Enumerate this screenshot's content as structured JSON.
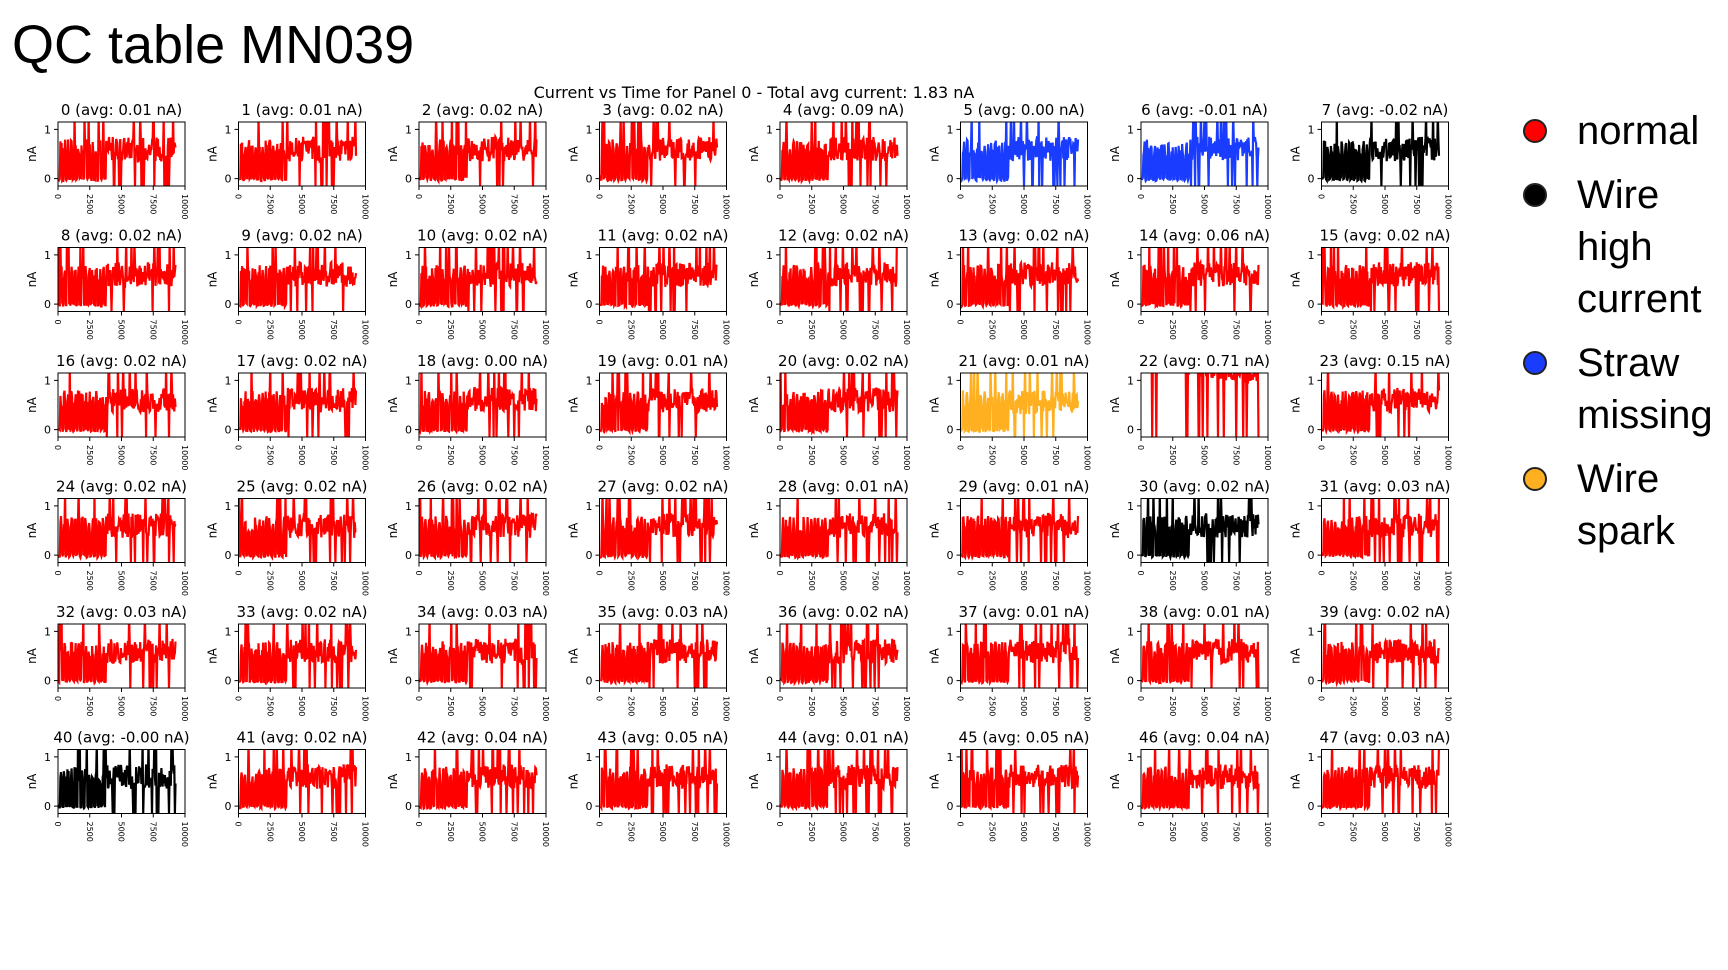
{
  "slide_title": "QC table MN039",
  "legend": {
    "items": [
      {
        "label": "normal",
        "color": "#ff0000"
      },
      {
        "label": "Wire high current",
        "color": "#000000"
      },
      {
        "label": "Straw missing",
        "color": "#1a3cff"
      },
      {
        "label": "Wire spark",
        "color": "#ffb020"
      }
    ]
  },
  "chart_data": {
    "type": "line",
    "title": "Current vs Time for Panel 0 - Total avg current: 1.83 nA",
    "grid": false,
    "xlim": [
      0,
      10000
    ],
    "ylim": [
      -0.15,
      1.15
    ],
    "x_ticks": [
      0,
      2500,
      5000,
      7500,
      10000
    ],
    "y_ticks": [
      0,
      1
    ],
    "ylabel": "nA",
    "colors": {
      "normal": "#ff0000",
      "high": "#000000",
      "missing": "#1a3cff",
      "spark": "#ffb020"
    },
    "panels": [
      {
        "channel": 0,
        "label": "0 (avg: 0.01 nA)",
        "status": "normal",
        "avg": 0.01
      },
      {
        "channel": 1,
        "label": "1 (avg: 0.01 nA)",
        "status": "normal",
        "avg": 0.01
      },
      {
        "channel": 2,
        "label": "2 (avg: 0.02 nA)",
        "status": "normal",
        "avg": 0.02
      },
      {
        "channel": 3,
        "label": "3 (avg: 0.02 nA)",
        "status": "normal",
        "avg": 0.02
      },
      {
        "channel": 4,
        "label": "4 (avg: 0.09 nA)",
        "status": "normal",
        "avg": 0.09
      },
      {
        "channel": 5,
        "label": "5 (avg: 0.00 nA)",
        "status": "missing",
        "avg": 0.0
      },
      {
        "channel": 6,
        "label": "6 (avg: -0.01 nA)",
        "status": "missing",
        "avg": -0.01
      },
      {
        "channel": 7,
        "label": "7 (avg: -0.02 nA)",
        "status": "high",
        "avg": -0.02
      },
      {
        "channel": 8,
        "label": "8 (avg: 0.02 nA)",
        "status": "normal",
        "avg": 0.02
      },
      {
        "channel": 9,
        "label": "9 (avg: 0.02 nA)",
        "status": "normal",
        "avg": 0.02
      },
      {
        "channel": 10,
        "label": "10 (avg: 0.02 nA)",
        "status": "normal",
        "avg": 0.02
      },
      {
        "channel": 11,
        "label": "11 (avg: 0.02 nA)",
        "status": "normal",
        "avg": 0.02
      },
      {
        "channel": 12,
        "label": "12 (avg: 0.02 nA)",
        "status": "normal",
        "avg": 0.02
      },
      {
        "channel": 13,
        "label": "13 (avg: 0.02 nA)",
        "status": "normal",
        "avg": 0.02
      },
      {
        "channel": 14,
        "label": "14 (avg: 0.06 nA)",
        "status": "normal",
        "avg": 0.06
      },
      {
        "channel": 15,
        "label": "15 (avg: 0.02 nA)",
        "status": "normal",
        "avg": 0.02
      },
      {
        "channel": 16,
        "label": "16 (avg: 0.02 nA)",
        "status": "normal",
        "avg": 0.02
      },
      {
        "channel": 17,
        "label": "17 (avg: 0.02 nA)",
        "status": "normal",
        "avg": 0.02
      },
      {
        "channel": 18,
        "label": "18 (avg: 0.00 nA)",
        "status": "normal",
        "avg": 0.0
      },
      {
        "channel": 19,
        "label": "19 (avg: 0.01 nA)",
        "status": "normal",
        "avg": 0.01
      },
      {
        "channel": 20,
        "label": "20 (avg: 0.02 nA)",
        "status": "normal",
        "avg": 0.02
      },
      {
        "channel": 21,
        "label": "21 (avg: 0.01 nA)",
        "status": "spark",
        "avg": 0.01
      },
      {
        "channel": 22,
        "label": "22 (avg: 0.71 nA)",
        "status": "normal",
        "avg": 0.71
      },
      {
        "channel": 23,
        "label": "23 (avg: 0.15 nA)",
        "status": "normal",
        "avg": 0.15
      },
      {
        "channel": 24,
        "label": "24 (avg: 0.02 nA)",
        "status": "normal",
        "avg": 0.02
      },
      {
        "channel": 25,
        "label": "25 (avg: 0.02 nA)",
        "status": "normal",
        "avg": 0.02
      },
      {
        "channel": 26,
        "label": "26 (avg: 0.02 nA)",
        "status": "normal",
        "avg": 0.02
      },
      {
        "channel": 27,
        "label": "27 (avg: 0.02 nA)",
        "status": "normal",
        "avg": 0.02
      },
      {
        "channel": 28,
        "label": "28 (avg: 0.01 nA)",
        "status": "normal",
        "avg": 0.01
      },
      {
        "channel": 29,
        "label": "29 (avg: 0.01 nA)",
        "status": "normal",
        "avg": 0.01
      },
      {
        "channel": 30,
        "label": "30 (avg: 0.02 nA)",
        "status": "high",
        "avg": 0.02
      },
      {
        "channel": 31,
        "label": "31 (avg: 0.03 nA)",
        "status": "normal",
        "avg": 0.03
      },
      {
        "channel": 32,
        "label": "32 (avg: 0.03 nA)",
        "status": "normal",
        "avg": 0.03
      },
      {
        "channel": 33,
        "label": "33 (avg: 0.02 nA)",
        "status": "normal",
        "avg": 0.02
      },
      {
        "channel": 34,
        "label": "34 (avg: 0.03 nA)",
        "status": "normal",
        "avg": 0.03
      },
      {
        "channel": 35,
        "label": "35 (avg: 0.03 nA)",
        "status": "normal",
        "avg": 0.03
      },
      {
        "channel": 36,
        "label": "36 (avg: 0.02 nA)",
        "status": "normal",
        "avg": 0.02
      },
      {
        "channel": 37,
        "label": "37 (avg: 0.01 nA)",
        "status": "normal",
        "avg": 0.01
      },
      {
        "channel": 38,
        "label": "38 (avg: 0.01 nA)",
        "status": "normal",
        "avg": 0.01
      },
      {
        "channel": 39,
        "label": "39 (avg: 0.02 nA)",
        "status": "normal",
        "avg": 0.02
      },
      {
        "channel": 40,
        "label": "40 (avg: -0.00 nA)",
        "status": "high",
        "avg": -0.0
      },
      {
        "channel": 41,
        "label": "41 (avg: 0.02 nA)",
        "status": "normal",
        "avg": 0.02
      },
      {
        "channel": 42,
        "label": "42 (avg: 0.04 nA)",
        "status": "normal",
        "avg": 0.04
      },
      {
        "channel": 43,
        "label": "43 (avg: 0.05 nA)",
        "status": "normal",
        "avg": 0.05
      },
      {
        "channel": 44,
        "label": "44 (avg: 0.01 nA)",
        "status": "normal",
        "avg": 0.01
      },
      {
        "channel": 45,
        "label": "45 (avg: 0.05 nA)",
        "status": "normal",
        "avg": 0.05
      },
      {
        "channel": 46,
        "label": "46 (avg: 0.04 nA)",
        "status": "normal",
        "avg": 0.04
      },
      {
        "channel": 47,
        "label": "47 (avg: 0.03 nA)",
        "status": "normal",
        "avg": 0.03
      }
    ]
  }
}
